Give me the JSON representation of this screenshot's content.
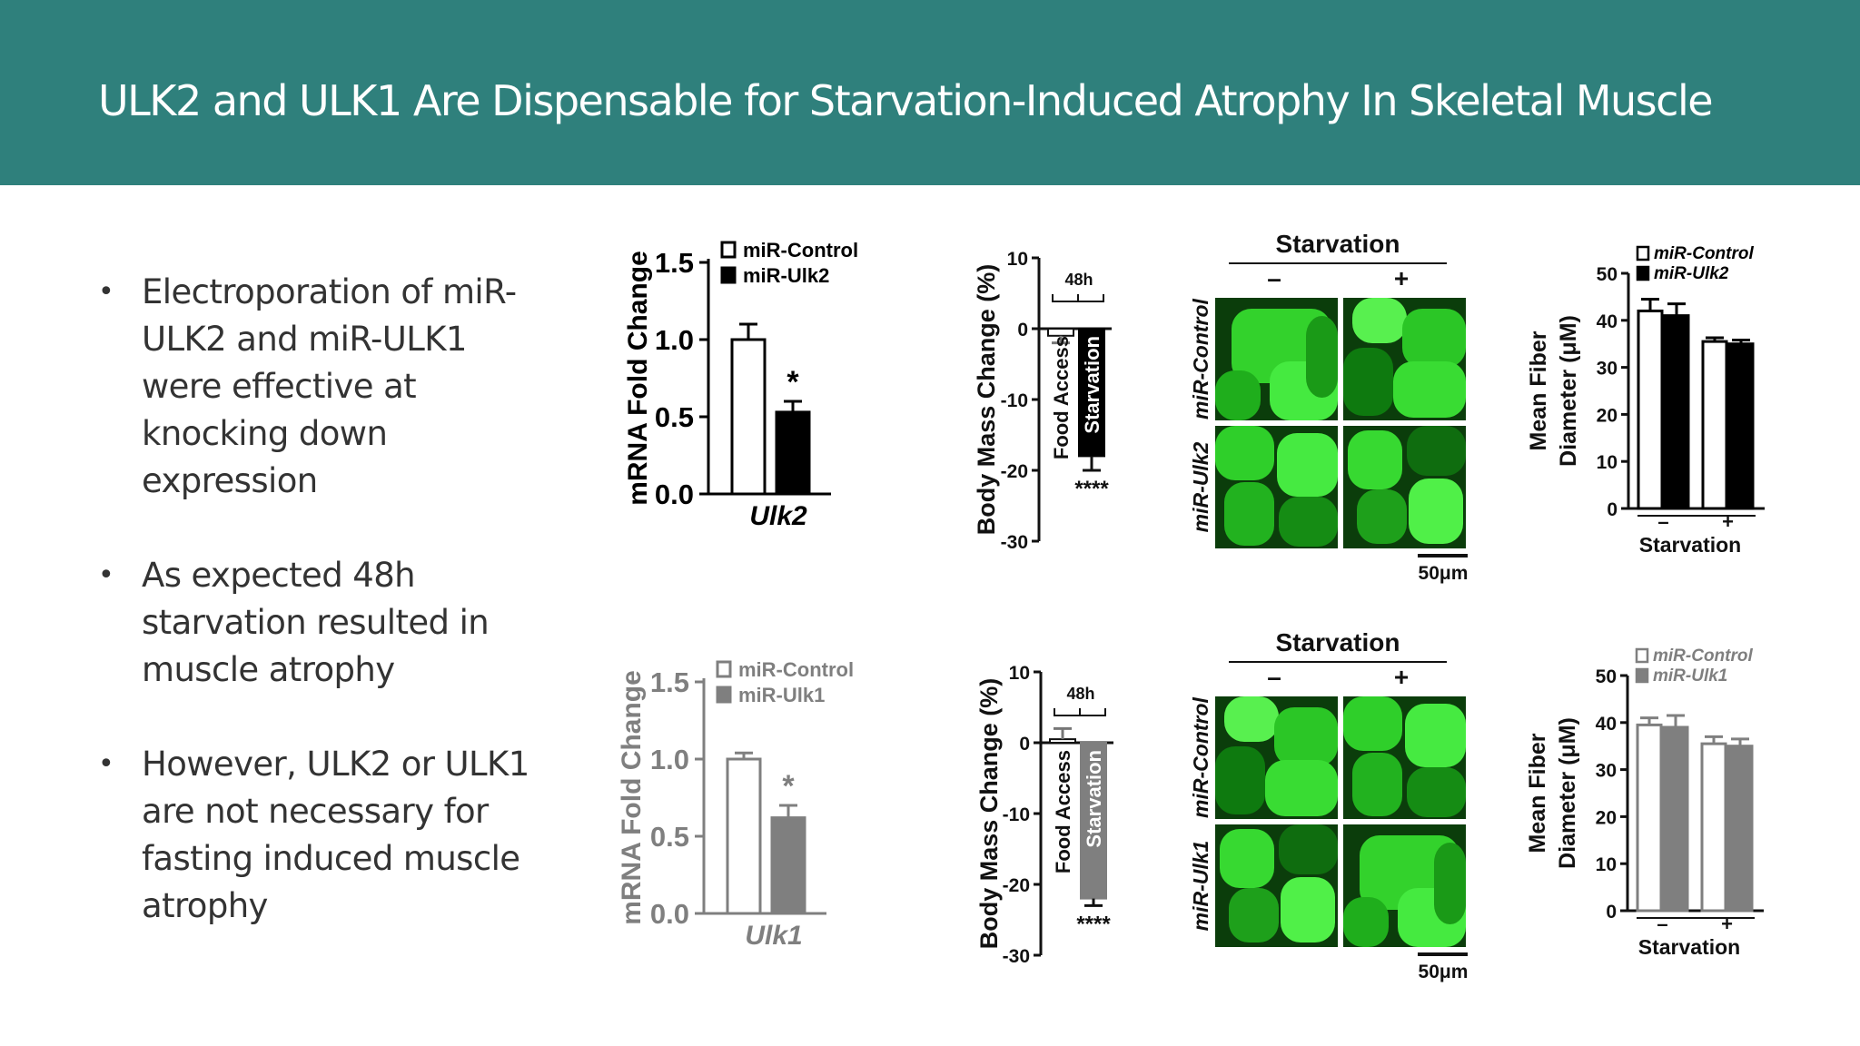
{
  "slide": {
    "title": "ULK2 and ULK1 Are Dispensable for Starvation-Induced Atrophy In Skeletal Muscle",
    "bullets": [
      "Electroporation of miR-ULK2 and miR-ULK1 were effective at knocking down expression",
      "As expected 48h starvation resulted in muscle atrophy",
      "However, ULK2 or ULK1 are not necessary for fasting induced muscle atrophy"
    ]
  },
  "colors": {
    "header": "#2f807c",
    "ulk2_series": "#000000",
    "ulk1_series": "#7f7f7f",
    "muscle_fiber": "#3fe03a"
  },
  "micrographs": [
    {
      "header": "Starvation",
      "columns": [
        "–",
        "+"
      ],
      "rows": [
        "miR-Control",
        "miR-Ulk2"
      ],
      "scale_bar": "50μm"
    },
    {
      "header": "Starvation",
      "columns": [
        "–",
        "+"
      ],
      "rows": [
        "miR-Control",
        "miR-Ulk1"
      ],
      "scale_bar": "50μm"
    }
  ],
  "chart_data": [
    {
      "type": "bar",
      "ylabel": "mRNA Fold Change",
      "xlabel": "Ulk2",
      "ylim": [
        0,
        1.5
      ],
      "yticks": [
        "0.0",
        "0.5",
        "1.0",
        "1.5"
      ],
      "legend": [
        "miR-Control",
        "miR-Ulk2"
      ],
      "series": [
        {
          "name": "miR-Control",
          "values": [
            1.0
          ],
          "error": [
            0.1
          ]
        },
        {
          "name": "miR-Ulk2",
          "values": [
            0.53
          ],
          "error": [
            0.07
          ]
        }
      ],
      "annotations": [
        "*"
      ]
    },
    {
      "type": "bar",
      "ylabel": "Body Mass Change (%)",
      "ylim": [
        -30,
        10
      ],
      "yticks": [
        "10",
        "0",
        "-10",
        "-20",
        "-30"
      ],
      "categories": [
        "Food Access",
        "Starvation"
      ],
      "values": [
        -1,
        -18
      ],
      "error": [
        1,
        2
      ],
      "annotations": [
        "48h",
        "****"
      ]
    },
    {
      "type": "bar",
      "ylabel": "Mean Fiber Diameter (μM)",
      "xlabel": "Starvation",
      "categories": [
        "–",
        "+"
      ],
      "ylim": [
        0,
        50
      ],
      "yticks": [
        "0",
        "10",
        "20",
        "30",
        "40",
        "50"
      ],
      "legend": [
        "miR-Control",
        "miR-Ulk2"
      ],
      "series": [
        {
          "name": "miR-Control",
          "values": [
            42,
            35.5
          ],
          "error": [
            2.5,
            0.8
          ]
        },
        {
          "name": "miR-Ulk2",
          "values": [
            41,
            35
          ],
          "error": [
            2.5,
            0.8
          ]
        }
      ]
    },
    {
      "type": "bar",
      "ylabel": "mRNA Fold Change",
      "xlabel": "Ulk1",
      "ylim": [
        0,
        1.5
      ],
      "yticks": [
        "0.0",
        "0.5",
        "1.0",
        "1.5"
      ],
      "legend": [
        "miR-Control",
        "miR-Ulk1"
      ],
      "series": [
        {
          "name": "miR-Control",
          "values": [
            1.0
          ],
          "error": [
            0.04
          ]
        },
        {
          "name": "miR-Ulk1",
          "values": [
            0.62
          ],
          "error": [
            0.08
          ]
        }
      ],
      "annotations": [
        "*"
      ]
    },
    {
      "type": "bar",
      "ylabel": "Body Mass Change (%)",
      "ylim": [
        -30,
        10
      ],
      "yticks": [
        "10",
        "0",
        "-10",
        "-20",
        "-30"
      ],
      "categories": [
        "Food Access",
        "Starvation"
      ],
      "values": [
        0.5,
        -22
      ],
      "error": [
        1.5,
        1
      ],
      "annotations": [
        "48h",
        "****"
      ]
    },
    {
      "type": "bar",
      "ylabel": "Mean Fiber Diameter (μM)",
      "xlabel": "Starvation",
      "categories": [
        "–",
        "+"
      ],
      "ylim": [
        0,
        50
      ],
      "yticks": [
        "0",
        "10",
        "20",
        "30",
        "40",
        "50"
      ],
      "legend": [
        "miR-Control",
        "miR-Ulk1"
      ],
      "series": [
        {
          "name": "miR-Control",
          "values": [
            39.5,
            35.5
          ],
          "error": [
            1.5,
            1.5
          ]
        },
        {
          "name": "miR-Ulk1",
          "values": [
            39,
            35
          ],
          "error": [
            2.5,
            1.5
          ]
        }
      ]
    }
  ]
}
